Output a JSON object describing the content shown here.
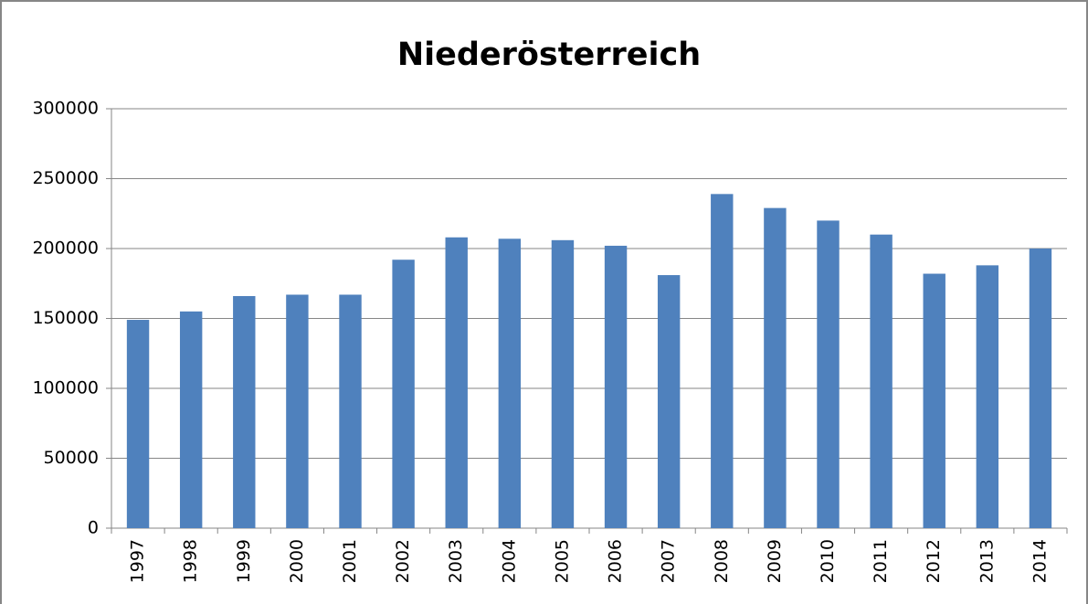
{
  "chart_data": {
    "type": "bar",
    "title": "Niederösterreich",
    "categories": [
      "1997",
      "1998",
      "1999",
      "2000",
      "2001",
      "2002",
      "2003",
      "2004",
      "2005",
      "2006",
      "2007",
      "2008",
      "2009",
      "2010",
      "2011",
      "2012",
      "2013",
      "2014"
    ],
    "values": [
      149000,
      155000,
      166000,
      167000,
      167000,
      192000,
      208000,
      207000,
      206000,
      202000,
      181000,
      239000,
      229000,
      220000,
      210000,
      182000,
      188000,
      200000
    ],
    "color": "#4f81bd",
    "ylim": [
      0,
      300000
    ],
    "yticks": [
      0,
      50000,
      100000,
      150000,
      200000,
      250000,
      300000
    ],
    "grid": true
  }
}
